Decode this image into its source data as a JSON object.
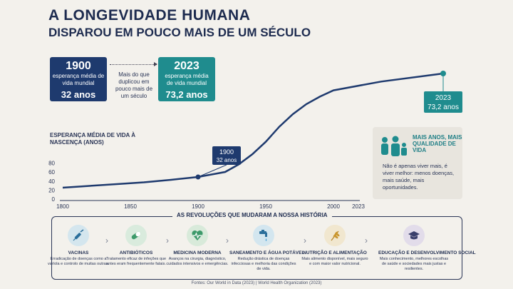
{
  "title_line1": "A LONGEVIDADE HUMANA",
  "title_line2": "DISPAROU EM POUCO MAIS DE UM SÉCULO",
  "box_1900": {
    "year": "1900",
    "desc1": "esperança média de",
    "desc2": "vida mundial",
    "value": "32 anos",
    "color": "#1e3a6e"
  },
  "box_2023": {
    "year": "2023",
    "desc1": "esperança média",
    "desc2": "de vida mundial",
    "value": "73,2 anos",
    "color": "#1f8c8e"
  },
  "middle_text": "Mais do que duplicou em pouco mais de um século",
  "y_axis_label": "ESPERANÇA MÉDIA DE VIDA À NASCENÇA (ANOS)",
  "callout_1900": {
    "year": "1900",
    "value": "32 anos"
  },
  "callout_2023": {
    "year": "2023",
    "value": "73,2 anos"
  },
  "side_box": {
    "title": "MAIS ANOS, MAIS QUALIDADE DE VIDA",
    "text": "Não é apenas viver mais, é viver melhor: menos doenças, mais saúde, mais oportunidades."
  },
  "revolutions_title": "AS REVOLUÇÕES QUE MUDARAM A NOSSA HISTÓRIA",
  "revolutions": [
    {
      "name": "VACINAS",
      "desc": "Erradicação de doenças como a varíola e controlo de muitas outras.",
      "icon": "syringe-icon",
      "color": "#d4e6ee"
    },
    {
      "name": "ANTIBIÓTICOS",
      "desc": "Tratamento eficaz de infeções que antes eram frequentemente fatais.",
      "icon": "pill-icon",
      "color": "#d9ebdd"
    },
    {
      "name": "MEDICINA MODERNA",
      "desc": "Avanços na cirurgia, diagnóstico, cuidados intensivos e emergências.",
      "icon": "heart-pulse-icon",
      "color": "#d8eada"
    },
    {
      "name": "SANEAMENTO E ÁGUA POTÁVEL",
      "desc": "Redução drástica de doenças infecciosas e melhoria das condições de vida.",
      "icon": "water-tap-icon",
      "color": "#d3e6ef"
    },
    {
      "name": "NUTRIÇÃO E ALIMENTAÇÃO",
      "desc": "Mais alimento disponível, mais seguro e com maior valor nutricional.",
      "icon": "wheat-icon",
      "color": "#f1e7cf"
    },
    {
      "name": "EDUCAÇÃO E DESENVOLVIMENTO SOCIAL",
      "desc": "Mais conhecimento, melhores escolhas de saúde e sociedades mais justas e resilientes.",
      "icon": "graduation-cap-icon",
      "color": "#e2dcea"
    }
  ],
  "source": "Fontes: Our World in Data (2023) | World Health Organization (2023)",
  "chart_data": {
    "type": "line",
    "xlabel": "",
    "ylabel": "ESPERANÇA MÉDIA DE VIDA À NASCENÇA (ANOS)",
    "x_ticks": [
      "1800",
      "1850",
      "1900",
      "1950",
      "2000",
      "2023"
    ],
    "y_ticks": [
      "0",
      "20",
      "40",
      "60",
      "80"
    ],
    "xlim": [
      1800,
      2023
    ],
    "ylim": [
      0,
      80
    ],
    "series": [
      {
        "color": "#1e3a6e",
        "points": [
          [
            1800,
            29
          ],
          [
            1820,
            29.5
          ],
          [
            1840,
            30
          ],
          [
            1860,
            30.5
          ],
          [
            1880,
            31.2
          ],
          [
            1900,
            32
          ],
          [
            1910,
            33
          ],
          [
            1920,
            34
          ],
          [
            1930,
            37
          ],
          [
            1940,
            41
          ],
          [
            1950,
            46
          ],
          [
            1960,
            52
          ],
          [
            1970,
            57
          ],
          [
            1980,
            61
          ],
          [
            1990,
            64
          ],
          [
            2000,
            66.5
          ],
          [
            2010,
            70
          ],
          [
            2023,
            73.2
          ]
        ]
      }
    ],
    "highlight_color": "#1f8c8e"
  }
}
